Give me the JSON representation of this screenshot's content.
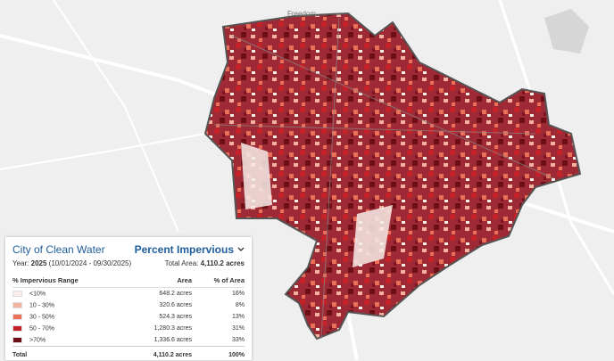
{
  "map": {
    "labels": [
      "Freedom"
    ]
  },
  "panel": {
    "title": "City of Clean Water",
    "layer": "Percent Impervious",
    "year_label": "Year:",
    "year": "2025",
    "period": "(10/01/2024 - 09/30/2025)",
    "total_label": "Total Area:",
    "total": "4,110.2 acres",
    "table": {
      "header": [
        "% Impervious Range",
        "Area",
        "% of Area"
      ],
      "rows": [
        {
          "range": "<10%",
          "area": "648.2 acres",
          "share": "16%",
          "color": "#fbeee8"
        },
        {
          "range": "10 - 30%",
          "area": "320.6 acres",
          "share": "8%",
          "color": "#f4b3a0"
        },
        {
          "range": "30 - 50%",
          "area": "524.3 acres",
          "share": "13%",
          "color": "#ec6f5a"
        },
        {
          "range": "50 - 70%",
          "area": "1,280.3 acres",
          "share": "31%",
          "color": "#c4222b"
        },
        {
          "range": ">70%",
          "area": "1,336.6 acres",
          "share": "33%",
          "color": "#6e0f18"
        }
      ],
      "total": [
        "Total",
        "4,110.2 acres",
        "100%"
      ]
    }
  }
}
